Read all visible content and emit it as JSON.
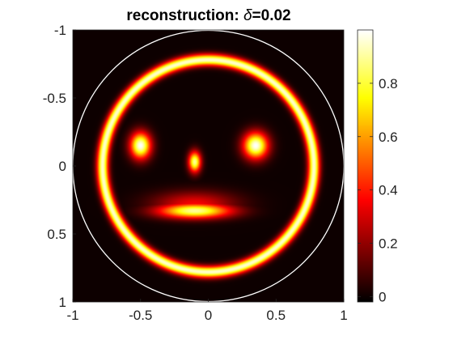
{
  "chart_data": {
    "type": "heatmap",
    "title": "reconstruction: ",
    "title_symbol": "δ",
    "title_value": "=0.02",
    "xlabel": "",
    "ylabel": "",
    "xlim": [
      -1,
      1
    ],
    "ylim": [
      -1,
      1
    ],
    "y_direction": "reverse",
    "x_ticks": [
      "-1",
      "-0.5",
      "0",
      "0.5",
      "1"
    ],
    "y_ticks": [
      "-1",
      "-0.5",
      "0",
      "0.5",
      "1"
    ],
    "colormap": "hot",
    "colorbar": {
      "range": [
        -0.02,
        1.0
      ],
      "ticks": [
        "0",
        "0.2",
        "0.4",
        "0.6",
        "0.8"
      ],
      "tick_values": [
        0,
        0.2,
        0.4,
        0.6,
        0.8
      ]
    },
    "domain_outline": {
      "shape": "circle",
      "center": [
        0,
        0
      ],
      "radius": 1,
      "color": "#ffffff"
    },
    "features": [
      {
        "name": "outer ring",
        "center": [
          0,
          0
        ],
        "radius": 0.78,
        "peak": 0.95
      },
      {
        "name": "left eye",
        "center": [
          -0.5,
          -0.15
        ],
        "peak": 1.0
      },
      {
        "name": "right eye",
        "center": [
          0.35,
          -0.15
        ],
        "peak": 1.0
      },
      {
        "name": "nose",
        "center": [
          -0.1,
          -0.03
        ],
        "peak": 0.9
      },
      {
        "name": "mouth",
        "center": [
          -0.1,
          0.33
        ],
        "peak": 0.9
      }
    ],
    "grid": false,
    "legend": "none"
  }
}
